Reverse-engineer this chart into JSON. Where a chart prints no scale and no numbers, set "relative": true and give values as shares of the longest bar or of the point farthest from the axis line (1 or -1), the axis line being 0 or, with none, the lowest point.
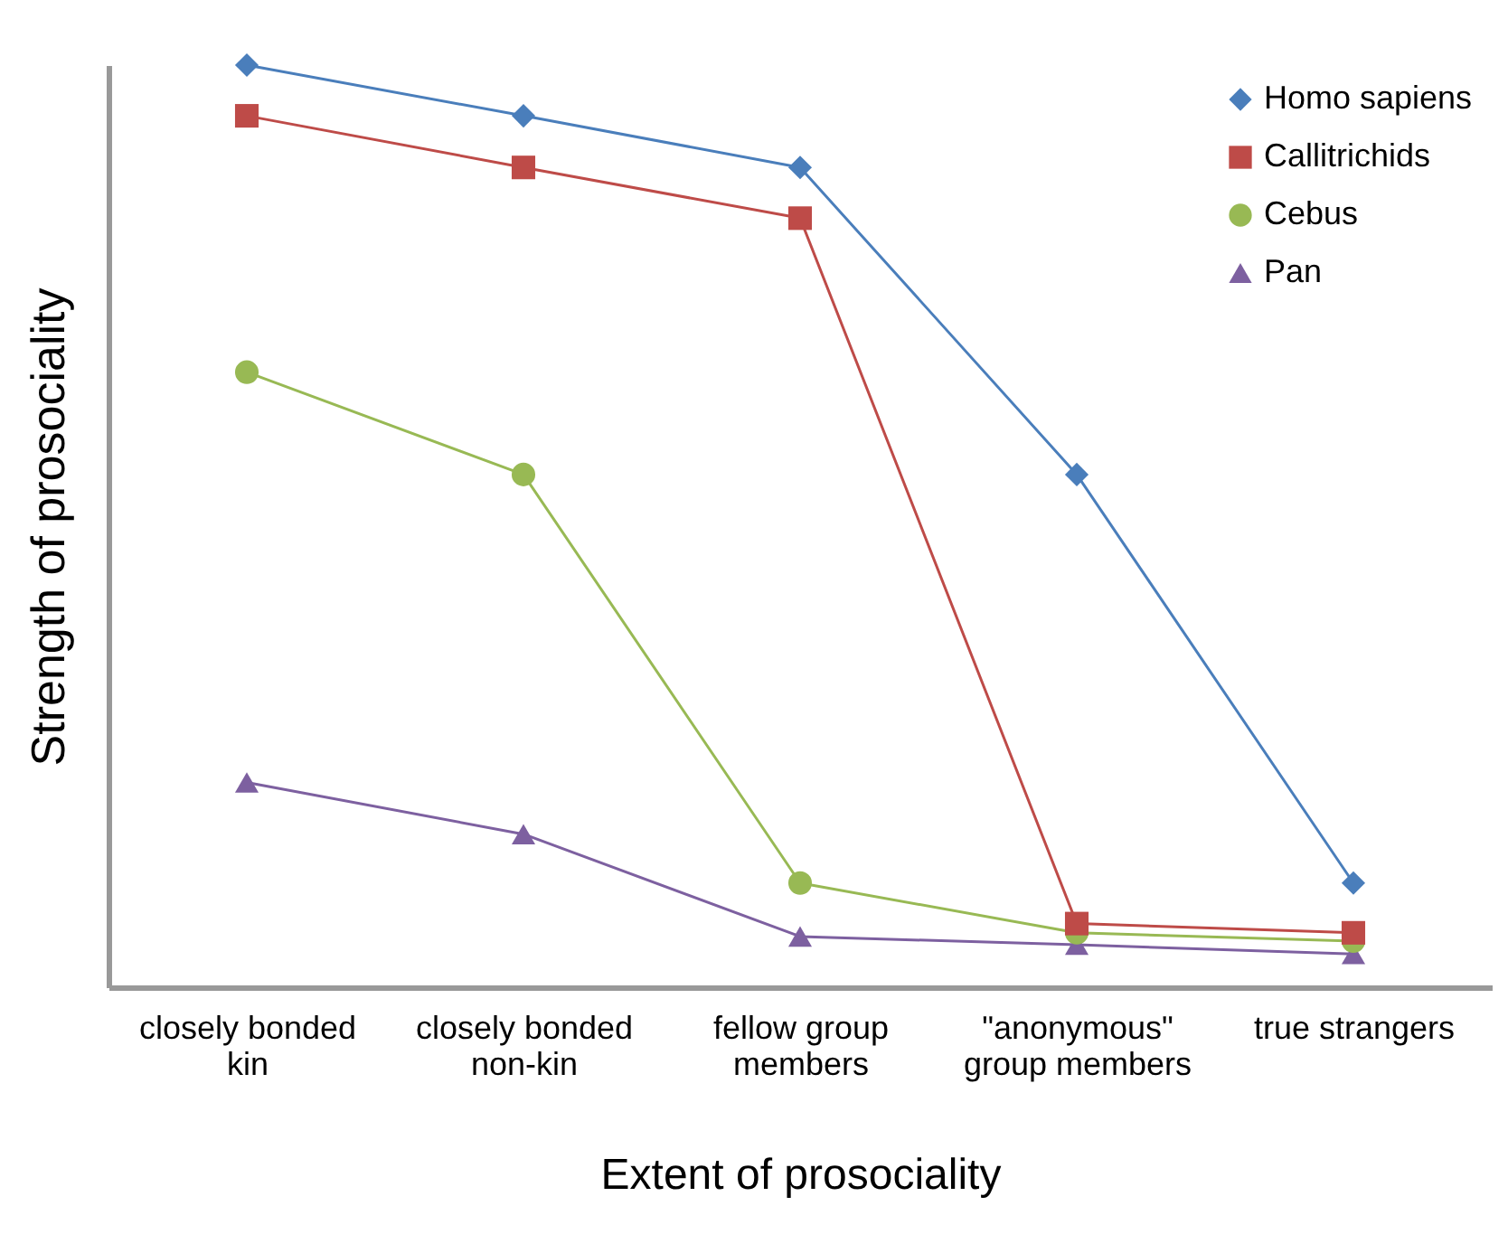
{
  "chart_data": {
    "type": "line",
    "relative": true,
    "xlabel": "Extent of prosociality",
    "ylabel": "Strength of prosociality",
    "categories": [
      "closely bonded kin",
      "closely bonded non-kin",
      "fellow group members",
      "\"anonymous\" group members",
      "true strangers"
    ],
    "legend": "top right",
    "grid": false,
    "series": [
      {
        "name": "Homo sapiens",
        "color": "#4a7ebb",
        "marker": "diamond",
        "values": [
          1.0,
          0.945,
          0.889,
          0.556,
          0.113
        ]
      },
      {
        "name": "Callitrichids",
        "color": "#be4b48",
        "marker": "square",
        "values": [
          0.945,
          0.889,
          0.834,
          0.069,
          0.059
        ]
      },
      {
        "name": "Cebus",
        "color": "#98b954",
        "marker": "circle",
        "values": [
          0.667,
          0.556,
          0.113,
          0.059,
          0.05
        ]
      },
      {
        "name": "Pan",
        "color": "#7d60a0",
        "marker": "triangle",
        "values": [
          0.222,
          0.166,
          0.055,
          0.046,
          0.036
        ]
      }
    ]
  }
}
